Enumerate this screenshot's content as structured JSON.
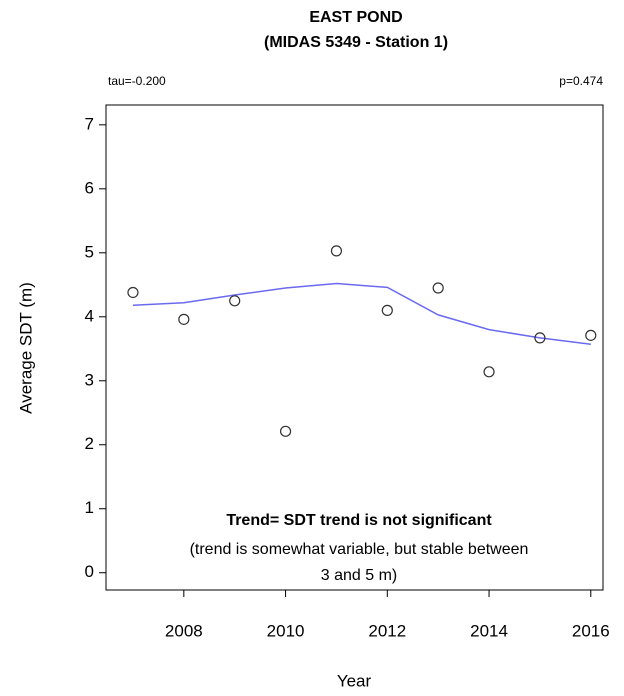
{
  "chart_data": {
    "type": "scatter",
    "title": "EAST POND",
    "subtitle": "(MIDAS 5349 - Station 1)",
    "stats": [
      "tau=-0.200",
      "p=0.474"
    ],
    "x_label": "Year",
    "y_label": "Average SDT (m)",
    "annotations": [
      "Trend= SDT trend is not significant",
      "(trend is somewhat variable, but stable between",
      "3 and 5 m)"
    ],
    "x": [
      2007,
      2008,
      2009,
      2010,
      2011,
      2012,
      2013,
      2014,
      2015,
      2016
    ],
    "points": {
      "color": "#333333",
      "values": [
        4.38,
        3.96,
        4.25,
        2.21,
        5.03,
        4.1,
        4.45,
        3.14,
        3.67,
        3.71
      ]
    },
    "trend_line": {
      "color": "#6a6af0",
      "values": [
        4.18,
        4.22,
        4.34,
        4.45,
        4.52,
        4.46,
        4.03,
        3.8,
        3.67,
        3.57
      ]
    },
    "xlim": [
      2006.47,
      2016.24
    ],
    "ylim": [
      -0.27,
      7.31
    ],
    "xticks": [
      2008,
      2010,
      2012,
      2014,
      2016
    ],
    "yticks": [
      0,
      1,
      2,
      3,
      4,
      5,
      6,
      7
    ]
  }
}
